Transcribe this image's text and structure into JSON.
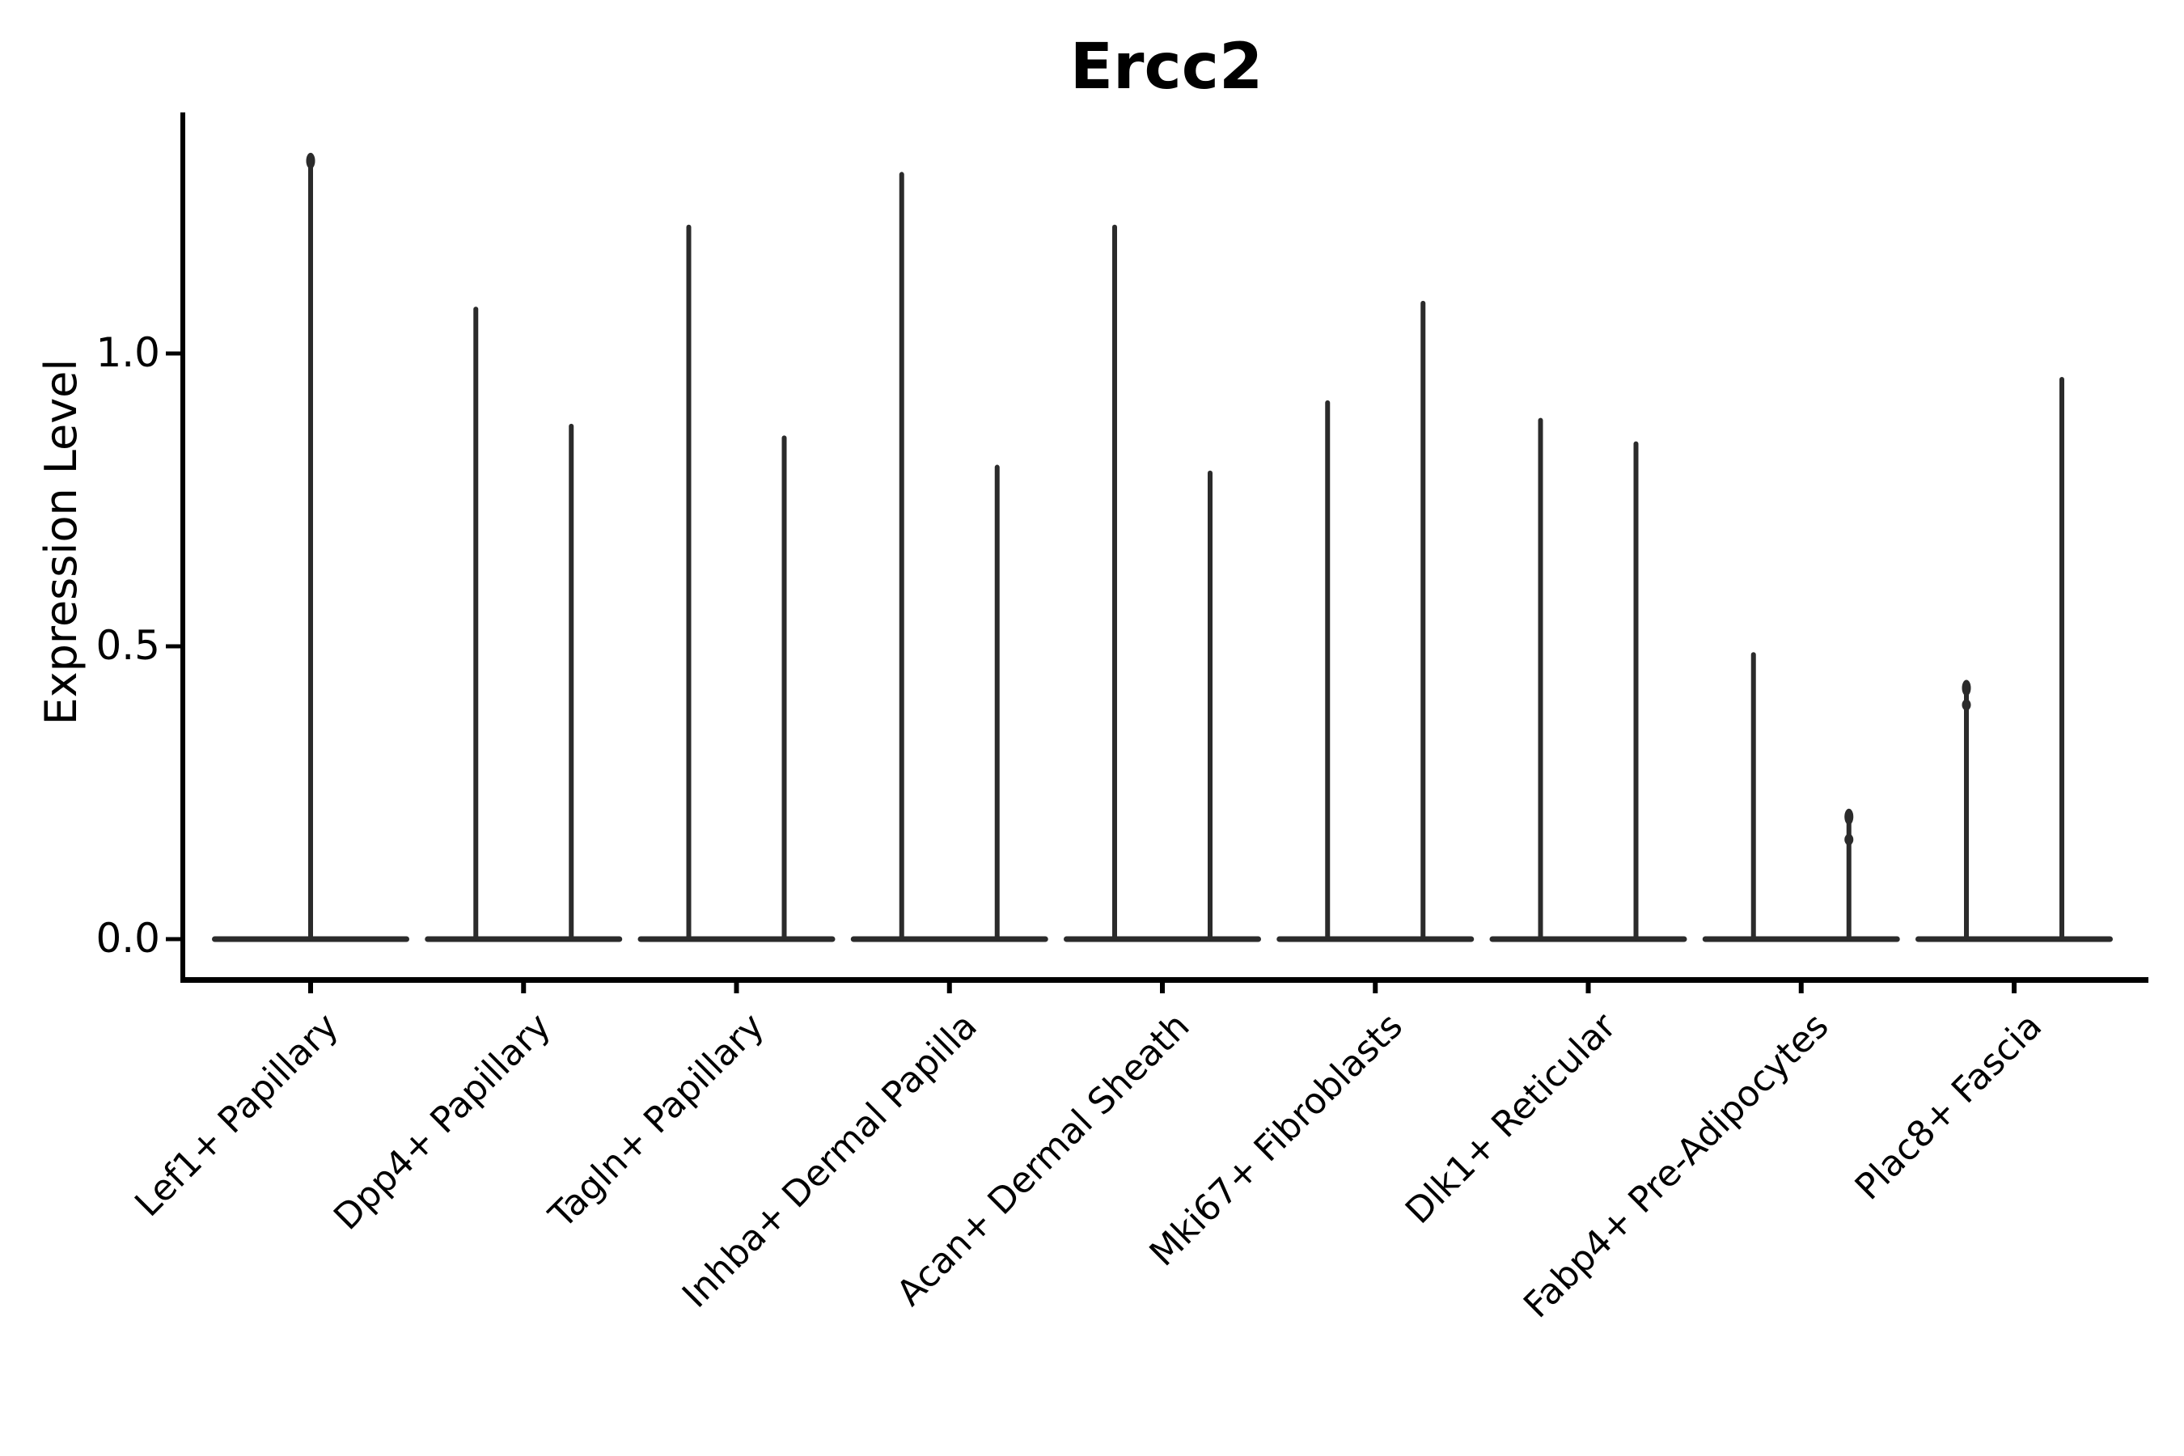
{
  "title": "Ercc2",
  "y_axis": {
    "label": "Expression Level",
    "ticks": [
      {
        "label": "0.0",
        "value": 0.0
      },
      {
        "label": "0.5",
        "value": 0.5
      },
      {
        "label": "1.0",
        "value": 1.0
      }
    ]
  },
  "colors": {
    "violin": "#2b2b2b",
    "axis": "#000000",
    "text": "#000000",
    "background": "#ffffff"
  },
  "chart_data": {
    "type": "violin",
    "title": "Ercc2",
    "xlabel": "",
    "ylabel": "Expression Level",
    "ylim": [
      -0.05,
      1.41
    ],
    "ytick_values": [
      0.0,
      0.5,
      1.0
    ],
    "grid": false,
    "legend": "none",
    "baseline_value": 0.0,
    "description": "Each category shows a violin collapsed to a flat bar at expression 0 with thin spikes rising to the maximum expression value; categories after the first show two spikes (left/right sub-violins).",
    "categories": [
      {
        "label": "Lef1+ Papillary",
        "spikes": [
          {
            "side": "center",
            "max": 1.34,
            "cap": true,
            "nodes": []
          }
        ]
      },
      {
        "label": "Dpp4+ Papillary",
        "spikes": [
          {
            "side": "left",
            "max": 1.08,
            "cap": false,
            "nodes": []
          },
          {
            "side": "right",
            "max": 0.88,
            "cap": false,
            "nodes": []
          }
        ]
      },
      {
        "label": "Tagln+ Papillary",
        "spikes": [
          {
            "side": "left",
            "max": 1.22,
            "cap": false,
            "nodes": []
          },
          {
            "side": "right",
            "max": 0.86,
            "cap": false,
            "nodes": []
          }
        ]
      },
      {
        "label": "Inhba+ Dermal Papilla",
        "spikes": [
          {
            "side": "left",
            "max": 1.31,
            "cap": false,
            "nodes": []
          },
          {
            "side": "right",
            "max": 0.81,
            "cap": false,
            "nodes": []
          }
        ]
      },
      {
        "label": "Acan+ Dermal Sheath",
        "spikes": [
          {
            "side": "left",
            "max": 1.22,
            "cap": false,
            "nodes": []
          },
          {
            "side": "right",
            "max": 0.8,
            "cap": false,
            "nodes": []
          }
        ]
      },
      {
        "label": "Mki67+ Fibroblasts",
        "spikes": [
          {
            "side": "left",
            "max": 0.92,
            "cap": false,
            "nodes": []
          },
          {
            "side": "right",
            "max": 1.09,
            "cap": false,
            "nodes": []
          }
        ]
      },
      {
        "label": "Dlk1+ Reticular",
        "spikes": [
          {
            "side": "left",
            "max": 0.89,
            "cap": false,
            "nodes": []
          },
          {
            "side": "right",
            "max": 0.85,
            "cap": false,
            "nodes": []
          }
        ]
      },
      {
        "label": "Fabp4+ Pre-Adipocytes",
        "spikes": [
          {
            "side": "left",
            "max": 0.49,
            "cap": false,
            "nodes": []
          },
          {
            "side": "right",
            "max": 0.22,
            "cap": true,
            "nodes": [
              0.17
            ]
          }
        ]
      },
      {
        "label": "Plac8+ Fascia",
        "spikes": [
          {
            "side": "left",
            "max": 0.44,
            "cap": true,
            "nodes": [
              0.4
            ]
          },
          {
            "side": "right",
            "max": 0.96,
            "cap": false,
            "nodes": []
          }
        ]
      }
    ]
  }
}
